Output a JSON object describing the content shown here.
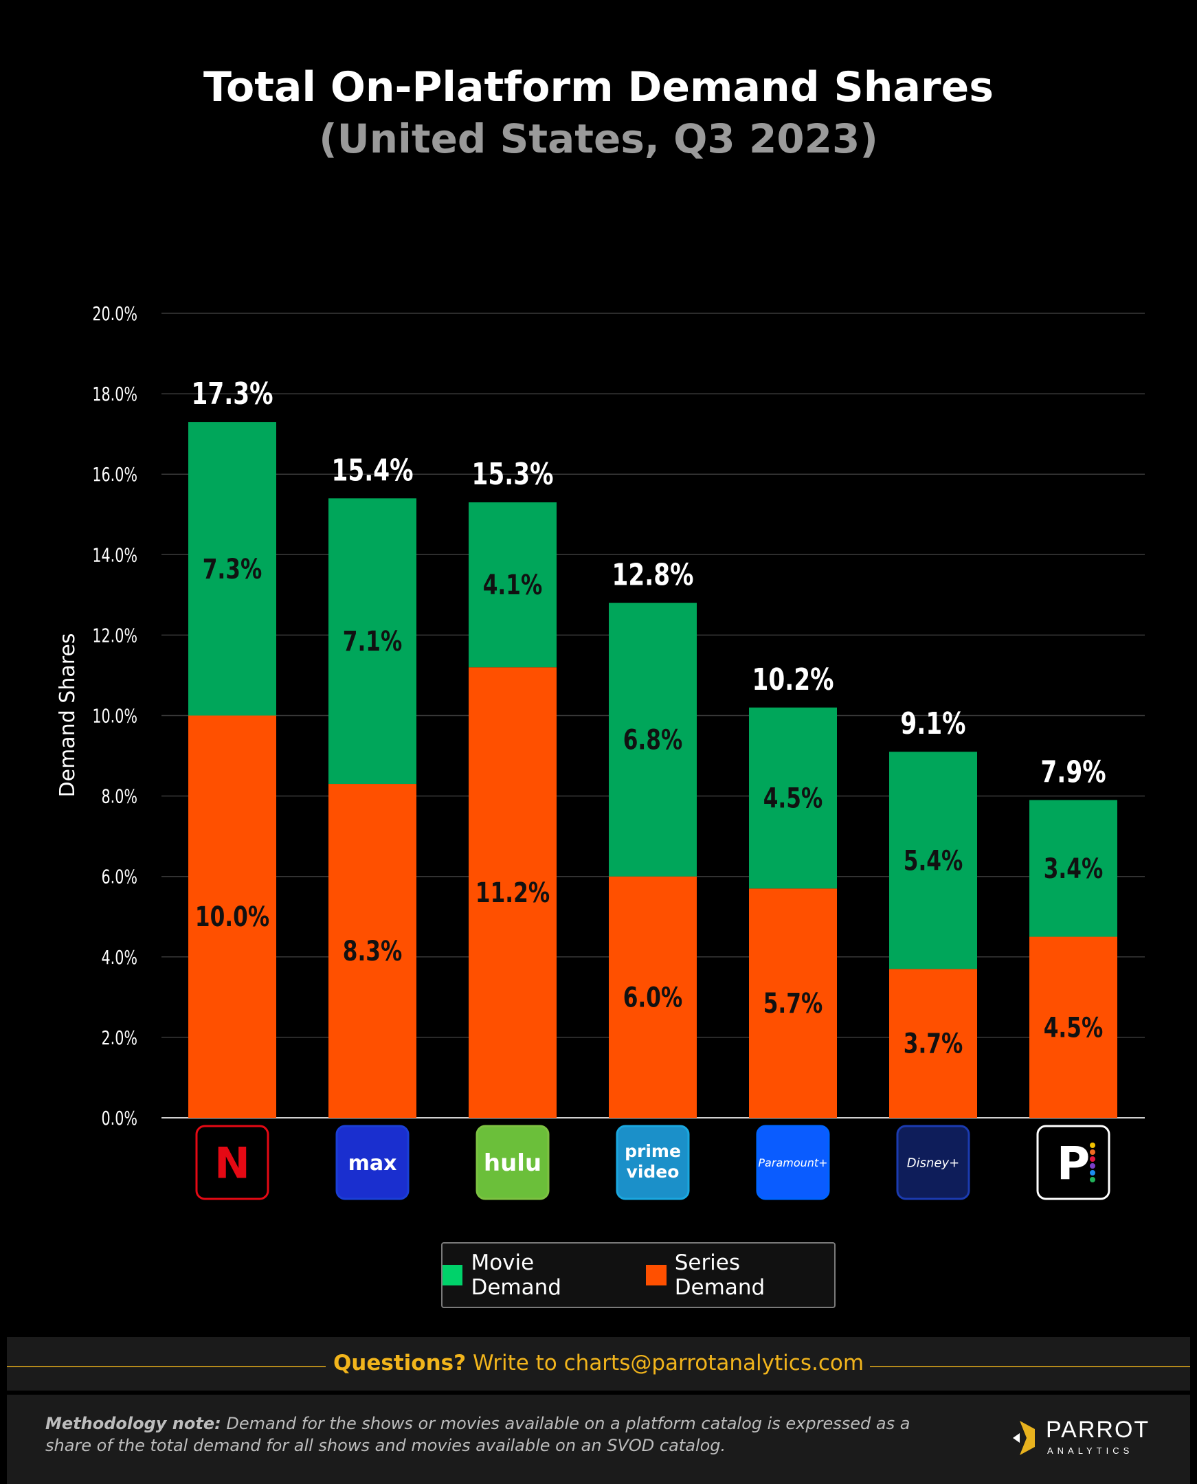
{
  "header": {
    "title": "Total On-Platform Demand Shares",
    "subtitle": "(United States, Q3 2023)"
  },
  "legend": {
    "movie_label": "Movie Demand",
    "series_label": "Series Demand"
  },
  "footer": {
    "questions_bold": "Questions?",
    "questions_text": " Write to charts@parrotanalytics.com",
    "method_bold": "Methodology note:",
    "method_text": " Demand for the shows or movies available on a platform catalog is expressed as a share of the total demand for all shows and movies available on an SVOD catalog.",
    "brand_name": "PARROT",
    "brand_sub": "ANALYTICS"
  },
  "colors": {
    "movie": "#00a65a",
    "series": "#ff5000",
    "background": "#000000",
    "accent": "#f2b51c"
  },
  "chart_data": {
    "type": "bar",
    "stacked": true,
    "title": "Total On-Platform Demand Shares",
    "subtitle": "(United States, Q3 2023)",
    "xlabel": "",
    "ylabel": "Demand Shares",
    "ylim": [
      0,
      20
    ],
    "yticks": [
      "0.0%",
      "2.0%",
      "4.0%",
      "6.0%",
      "8.0%",
      "10.0%",
      "12.0%",
      "14.0%",
      "16.0%",
      "18.0%",
      "20.0%"
    ],
    "grid": true,
    "legend_position": "bottom",
    "categories": [
      "Netflix",
      "Max",
      "Hulu",
      "Prime Video",
      "Paramount+",
      "Disney+",
      "Peacock"
    ],
    "category_logo_text": [
      "N",
      "max",
      "hulu",
      "prime video",
      "Paramount+",
      "Disney+",
      "P"
    ],
    "series": [
      {
        "name": "Series Demand",
        "color": "#ff5000",
        "values": [
          10.0,
          8.3,
          11.2,
          6.0,
          5.7,
          3.7,
          4.5
        ],
        "labels": [
          "10.0%",
          "8.3%",
          "11.2%",
          "6.0%",
          "5.7%",
          "3.7%",
          "4.5%"
        ]
      },
      {
        "name": "Movie Demand",
        "color": "#00a65a",
        "values": [
          7.3,
          7.1,
          4.1,
          6.8,
          4.5,
          5.4,
          3.4
        ],
        "labels": [
          "7.3%",
          "7.1%",
          "4.1%",
          "6.8%",
          "4.5%",
          "5.4%",
          "3.4%"
        ]
      }
    ],
    "totals": [
      17.3,
      15.4,
      15.3,
      12.8,
      10.2,
      9.1,
      7.9
    ],
    "total_labels": [
      "17.3%",
      "15.4%",
      "15.3%",
      "12.8%",
      "10.2%",
      "9.1%",
      "7.9%"
    ]
  }
}
